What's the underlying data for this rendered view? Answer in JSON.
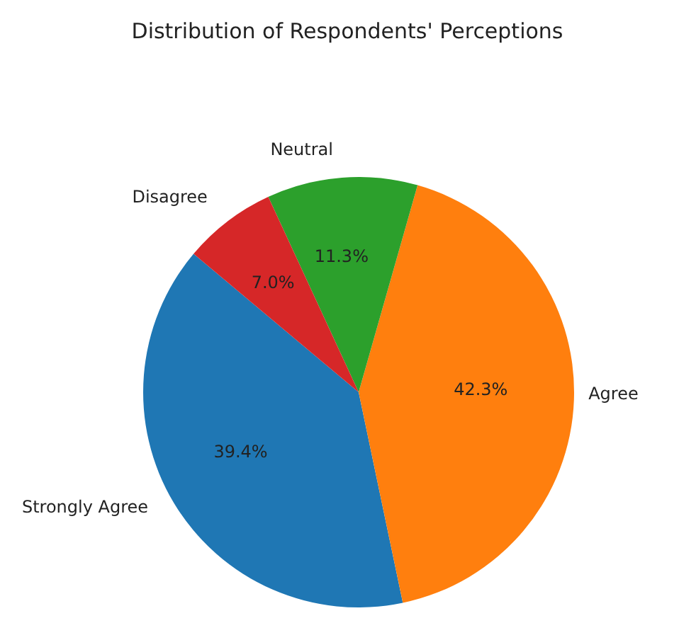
{
  "chart_data": {
    "type": "pie",
    "title": "Distribution of Respondents' Perceptions",
    "categories": [
      "Strongly Agree",
      "Agree",
      "Neutral",
      "Disagree"
    ],
    "values": [
      39.4,
      42.3,
      11.3,
      7.0
    ],
    "value_labels": [
      "39.4%",
      "42.3%",
      "11.3%",
      "7.0%"
    ],
    "colors": [
      "#1f77b4",
      "#ff7f0e",
      "#2ca02c",
      "#d62728"
    ],
    "legend": false
  }
}
